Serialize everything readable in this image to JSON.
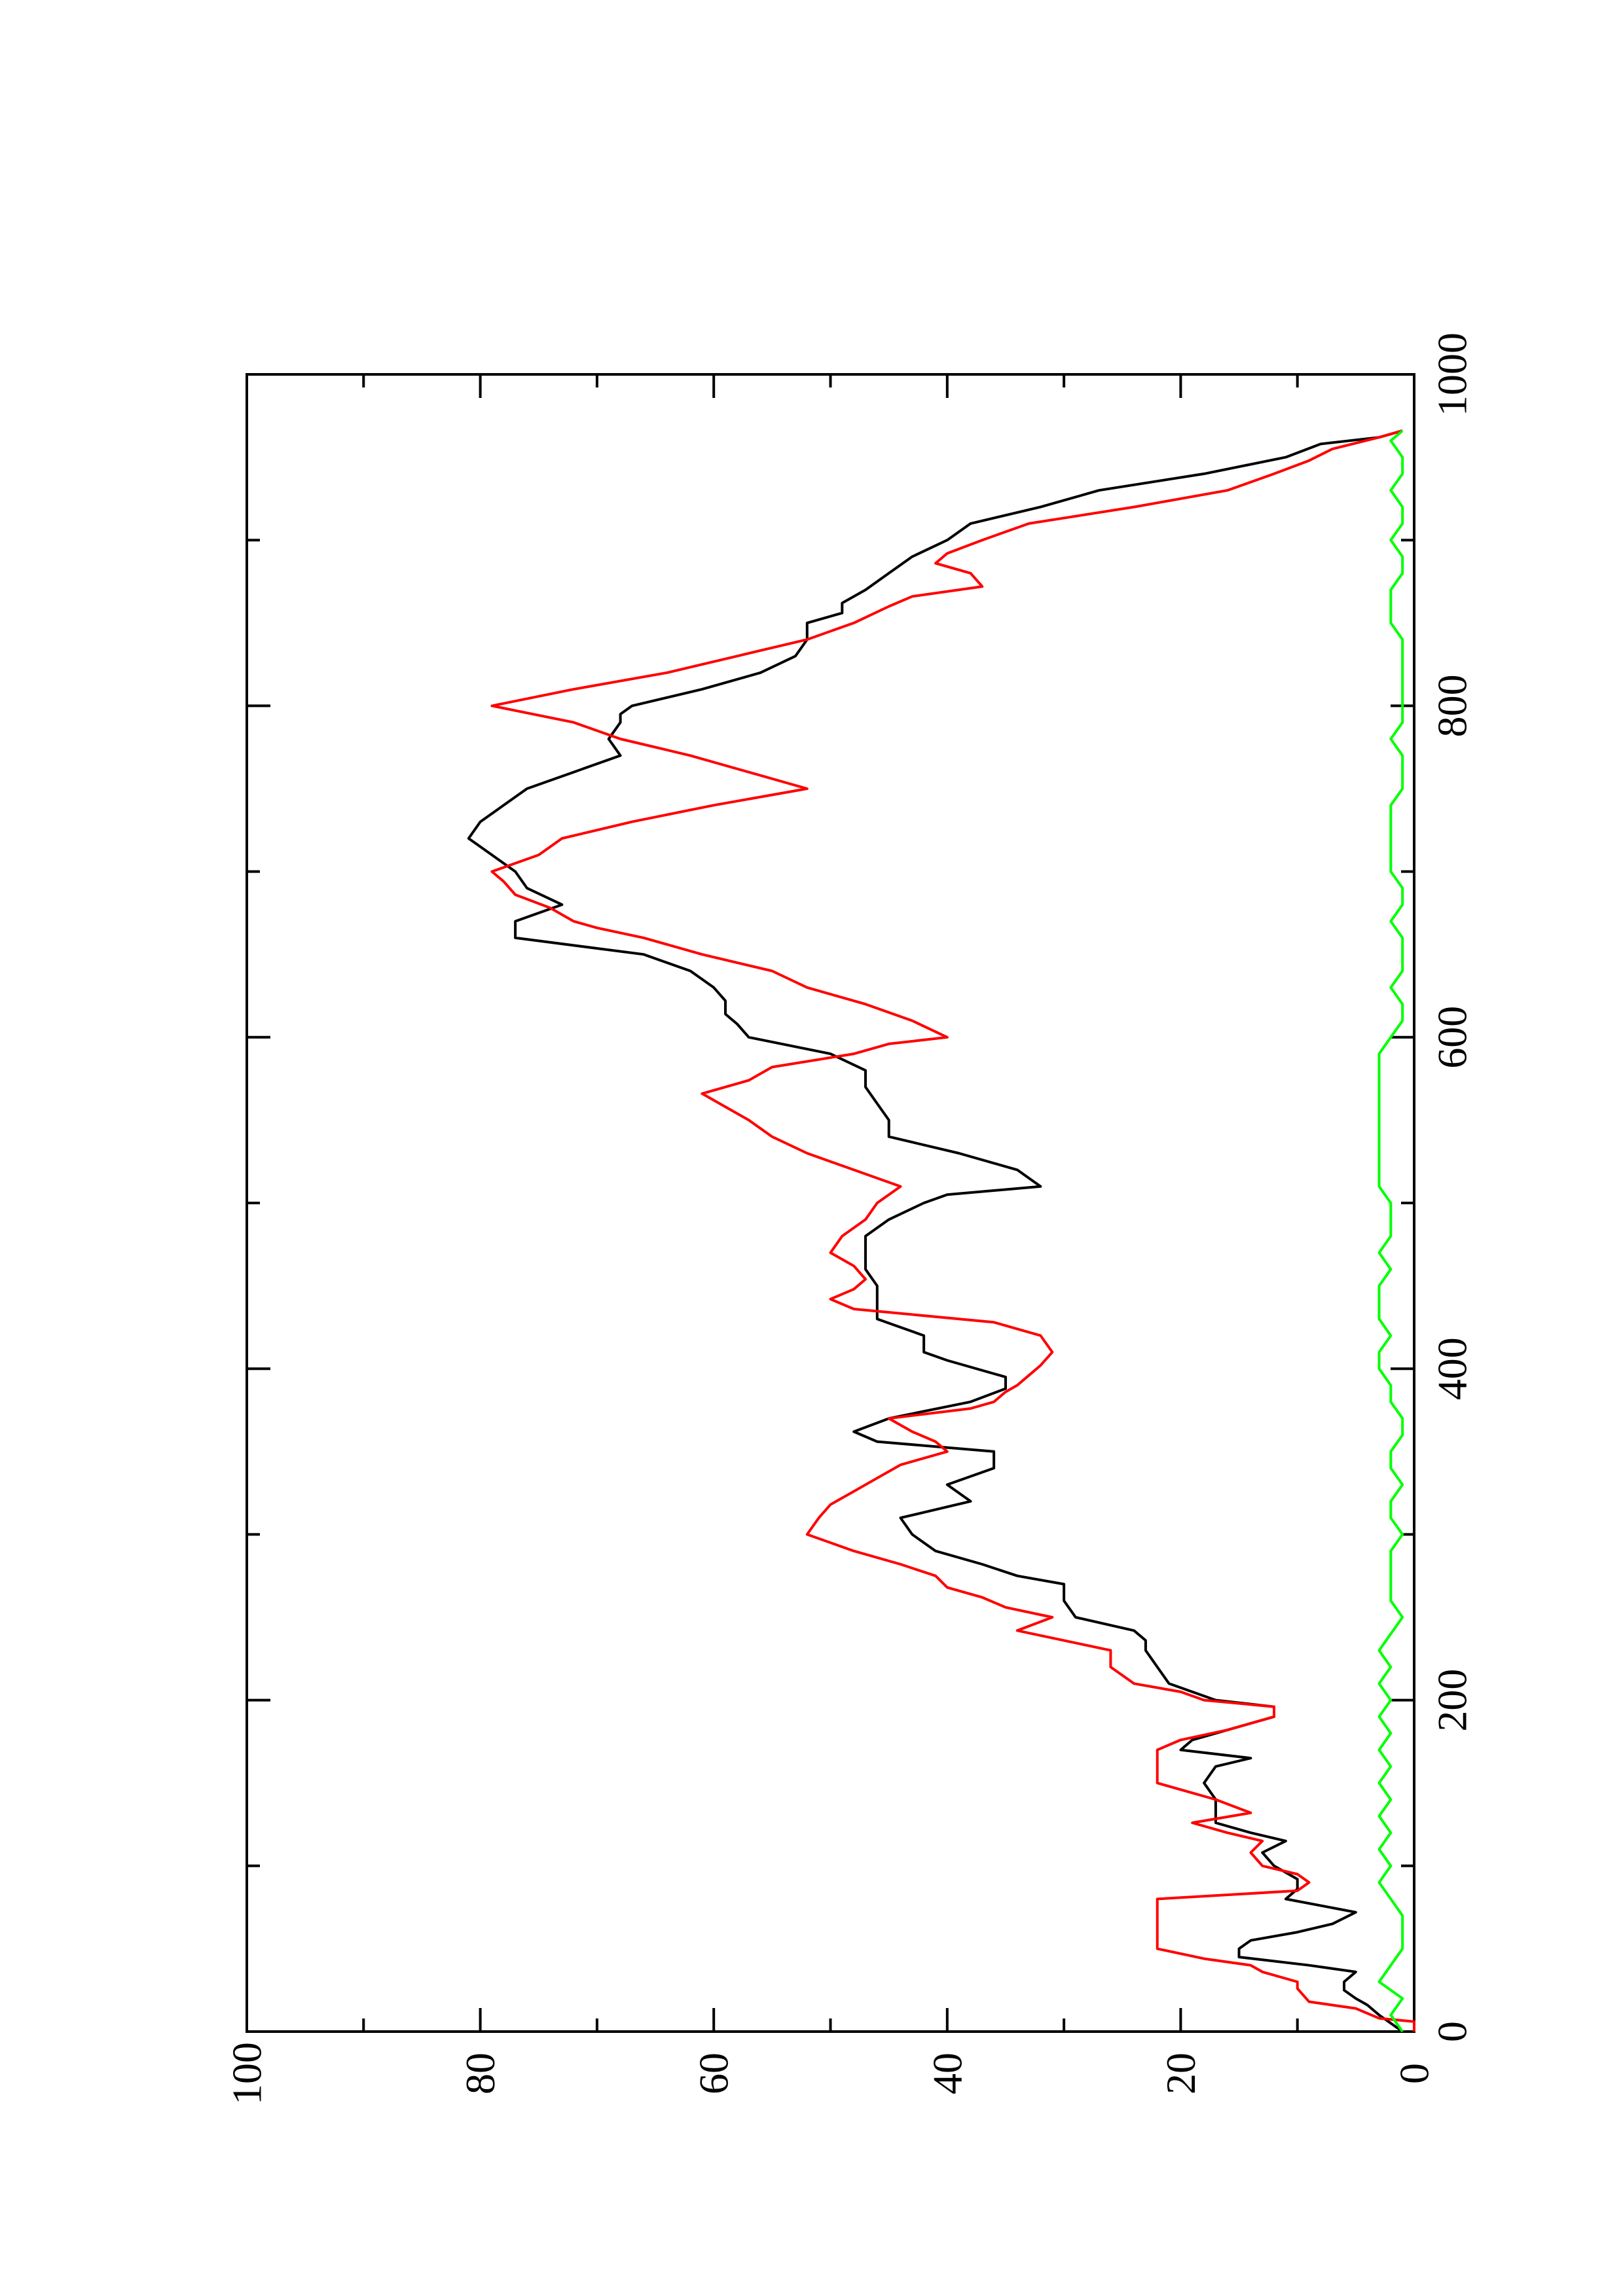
{
  "chart_data": {
    "type": "line",
    "orientation": "rotated-90-ccw",
    "title": "",
    "xlabel": "",
    "ylabel": "",
    "xlim": [
      0,
      1000
    ],
    "ylim": [
      0,
      100
    ],
    "x_ticks": [
      "0",
      "200",
      "400",
      "600",
      "800",
      "1000"
    ],
    "y_ticks": [
      "0",
      "20",
      "40",
      "60",
      "80",
      "100"
    ],
    "grid": false,
    "legend": "none",
    "series": [
      {
        "color": "#000000",
        "x": [
          0,
          5,
          10,
          16,
          20,
          25,
          30,
          36,
          40,
          45,
          50,
          55,
          60,
          65,
          72,
          80,
          86,
          92,
          100,
          108,
          115,
          120,
          126,
          132,
          140,
          150,
          160,
          165,
          170,
          176,
          182,
          190,
          196,
          200,
          210,
          220,
          230,
          236,
          242,
          250,
          260,
          270,
          275,
          282,
          290,
          300,
          310,
          320,
          330,
          340,
          350,
          356,
          362,
          370,
          380,
          388,
          395,
          405,
          410,
          420,
          430,
          440,
          450,
          460,
          470,
          480,
          490,
          500,
          505,
          510,
          520,
          530,
          540,
          550,
          560,
          570,
          580,
          590,
          600,
          608,
          614,
          622,
          630,
          640,
          650,
          660,
          670,
          680,
          690,
          700,
          710,
          720,
          730,
          740,
          750,
          760,
          770,
          780,
          790,
          795,
          800,
          810,
          820,
          830,
          840,
          850,
          856,
          862,
          870,
          880,
          890,
          900,
          910,
          920,
          930,
          940,
          950,
          958,
          962,
          966
        ],
        "values": [
          1,
          2,
          3,
          4,
          5,
          6,
          6,
          5,
          9,
          15,
          15,
          14,
          10,
          7,
          5,
          11,
          10,
          10,
          12,
          13,
          11,
          14,
          17,
          17,
          17,
          18,
          17,
          14,
          20,
          19,
          16,
          12,
          12,
          17,
          21,
          22,
          23,
          23,
          24,
          29,
          30,
          30,
          34,
          37,
          41,
          43,
          44,
          38,
          40,
          36,
          36,
          46,
          48,
          45,
          38,
          35,
          35,
          40,
          42,
          42,
          46,
          46,
          46,
          47,
          47,
          47,
          45,
          42,
          40,
          32,
          34,
          39,
          45,
          45,
          46,
          47,
          47,
          50,
          57,
          58,
          59,
          59,
          60,
          62,
          66,
          77,
          77,
          73,
          76,
          77,
          79,
          81,
          80,
          78,
          76,
          72,
          68,
          69,
          68,
          68,
          67,
          61,
          56,
          53,
          52,
          52,
          49,
          49,
          47,
          45,
          43,
          40,
          38,
          32,
          27,
          18,
          11,
          8,
          3,
          1
        ],
        "width": 4
      },
      {
        "color": "#ff0000",
        "x": [
          0,
          6,
          8,
          14,
          18,
          26,
          30,
          36,
          40,
          44,
          50,
          55,
          60,
          70,
          76,
          80,
          85,
          90,
          95,
          100,
          108,
          115,
          120,
          126,
          132,
          140,
          150,
          160,
          170,
          176,
          182,
          190,
          196,
          200,
          205,
          210,
          220,
          230,
          236,
          242,
          250,
          256,
          262,
          268,
          275,
          282,
          290,
          300,
          310,
          318,
          326,
          334,
          342,
          350,
          356,
          362,
          370,
          376,
          380,
          386,
          390,
          396,
          402,
          410,
          420,
          428,
          436,
          442,
          448,
          454,
          462,
          470,
          480,
          490,
          500,
          510,
          520,
          530,
          540,
          550,
          558,
          566,
          574,
          582,
          590,
          596,
          600,
          610,
          620,
          630,
          640,
          650,
          660,
          666,
          670,
          678,
          686,
          694,
          700,
          710,
          720,
          730,
          740,
          750,
          760,
          770,
          780,
          790,
          800,
          810,
          820,
          830,
          840,
          850,
          860,
          866,
          872,
          880,
          886,
          892,
          900,
          910,
          920,
          930,
          940,
          948,
          955,
          962,
          966
        ],
        "values": [
          0,
          0,
          3,
          5,
          9,
          10,
          10,
          13,
          14,
          18,
          22,
          22,
          22,
          22,
          22,
          22,
          10,
          9,
          10,
          13,
          14,
          13,
          16,
          19,
          14,
          17,
          22,
          22,
          22,
          20,
          16,
          12,
          12,
          18,
          20,
          24,
          26,
          26,
          30,
          34,
          31,
          35,
          37,
          40,
          41,
          44,
          48,
          52,
          51,
          50,
          48,
          46,
          44,
          40,
          41,
          43,
          45,
          38,
          36,
          35,
          34,
          33,
          32,
          31,
          32,
          36,
          48,
          50,
          48,
          47,
          48,
          50,
          49,
          47,
          46,
          44,
          48,
          52,
          55,
          57,
          59,
          61,
          57,
          55,
          48,
          45,
          40,
          43,
          47,
          52,
          55,
          61,
          66,
          70,
          72,
          74,
          77,
          78,
          79,
          75,
          73,
          67,
          60,
          52,
          57,
          62,
          68,
          72,
          79,
          72,
          64,
          58,
          52,
          48,
          45,
          43,
          37,
          38,
          41,
          40,
          37,
          33,
          24,
          16,
          12,
          9,
          7,
          3,
          1
        ],
        "width": 4
      },
      {
        "color": "#00ff00",
        "x": [
          0,
          10,
          20,
          30,
          40,
          50,
          60,
          70,
          80,
          90,
          100,
          110,
          120,
          130,
          140,
          150,
          160,
          170,
          180,
          190,
          200,
          210,
          220,
          230,
          240,
          250,
          260,
          270,
          280,
          290,
          300,
          310,
          320,
          330,
          340,
          350,
          360,
          370,
          380,
          390,
          400,
          410,
          420,
          430,
          440,
          450,
          460,
          470,
          480,
          490,
          500,
          510,
          520,
          530,
          540,
          550,
          560,
          570,
          580,
          590,
          600,
          610,
          620,
          630,
          640,
          650,
          660,
          670,
          680,
          690,
          700,
          710,
          720,
          730,
          740,
          750,
          760,
          770,
          780,
          790,
          800,
          810,
          820,
          830,
          840,
          850,
          860,
          870,
          880,
          890,
          900,
          910,
          920,
          930,
          940,
          950,
          960,
          966
        ],
        "values": [
          1,
          2,
          1,
          3,
          2,
          1,
          1,
          1,
          2,
          3,
          2,
          3,
          2,
          3,
          2,
          3,
          2,
          3,
          2,
          3,
          2,
          3,
          2,
          3,
          2,
          1,
          2,
          2,
          2,
          2,
          1,
          2,
          2,
          1,
          2,
          2,
          1,
          1,
          2,
          2,
          3,
          3,
          2,
          3,
          3,
          3,
          2,
          3,
          2,
          2,
          2,
          3,
          3,
          3,
          3,
          3,
          3,
          3,
          3,
          3,
          2,
          1,
          1,
          2,
          1,
          1,
          1,
          2,
          1,
          1,
          2,
          2,
          2,
          2,
          2,
          1,
          1,
          1,
          2,
          1,
          1,
          1,
          1,
          1,
          1,
          2,
          2,
          2,
          1,
          1,
          2,
          1,
          1,
          2,
          1,
          1,
          2,
          1
        ],
        "width": 4
      }
    ]
  }
}
